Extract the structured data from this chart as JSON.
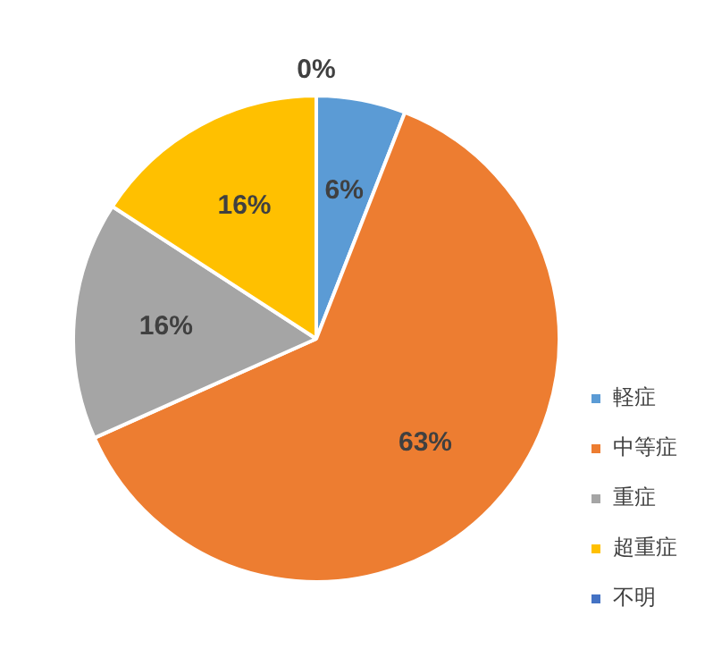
{
  "chart_data": {
    "type": "pie",
    "categories": [
      "軽症",
      "中等症",
      "重症",
      "超重症",
      "不明"
    ],
    "values": [
      6,
      63,
      16,
      16,
      0
    ],
    "colors": [
      "#5b9bd5",
      "#ed7d31",
      "#a5a5a5",
      "#ffc000",
      "#4472c4"
    ],
    "value_labels": [
      "6%",
      "63%",
      "16%",
      "16%",
      "0%"
    ],
    "legend": "bottom right"
  }
}
